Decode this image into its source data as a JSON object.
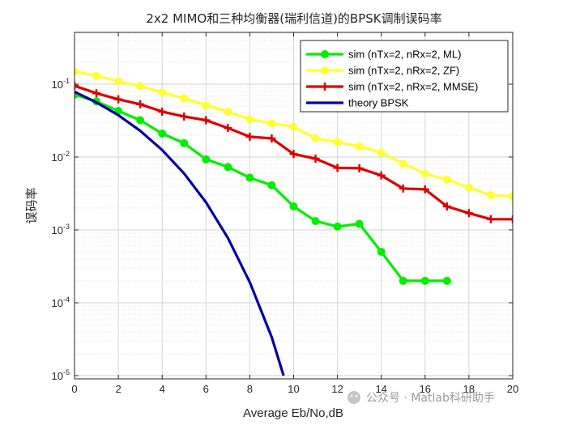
{
  "chart_data": {
    "type": "line",
    "title": "2x2 MIMO和三种均衡器(瑞利信道)的BPSK调制误码率",
    "xlabel": "Average Eb/No,dB",
    "ylabel": "误码率",
    "xlim": [
      0,
      20
    ],
    "ylim": [
      1e-05,
      0.5
    ],
    "yscale": "log",
    "grid": true,
    "legend_position": "top-right",
    "x_ticks": [
      "0",
      "2",
      "4",
      "6",
      "8",
      "10",
      "12",
      "14",
      "16",
      "18",
      "20"
    ],
    "y_ticks": [
      {
        "base": "10",
        "exp": "-1"
      },
      {
        "base": "10",
        "exp": "-2"
      },
      {
        "base": "10",
        "exp": "-3"
      },
      {
        "base": "10",
        "exp": "-4"
      },
      {
        "base": "10",
        "exp": "-5"
      }
    ],
    "series": [
      {
        "name": "sim (nTx=2, nRx=2, ML)",
        "color": "#00ee00",
        "marker": "circle",
        "x": [
          0,
          1,
          2,
          3,
          4,
          5,
          6,
          7,
          8,
          9,
          10,
          11,
          12,
          13,
          14,
          15,
          16,
          17
        ],
        "y": [
          0.072,
          0.058,
          0.043,
          0.032,
          0.021,
          0.0155,
          0.0093,
          0.0073,
          0.0052,
          0.0041,
          0.0021,
          0.00132,
          0.00111,
          0.00121,
          0.0005,
          0.0002,
          0.0002,
          0.0002
        ]
      },
      {
        "name": "sim (nTx=2, nRx=2, ZF)",
        "color": "#ffff33",
        "marker": "circle",
        "x": [
          0,
          1,
          2,
          3,
          4,
          5,
          6,
          7,
          8,
          9,
          10,
          11,
          12,
          13,
          14,
          15,
          16,
          17,
          18,
          19,
          20
        ],
        "y": [
          0.15,
          0.13,
          0.11,
          0.094,
          0.077,
          0.064,
          0.051,
          0.042,
          0.033,
          0.029,
          0.026,
          0.018,
          0.016,
          0.014,
          0.0115,
          0.0081,
          0.0059,
          0.0049,
          0.0038,
          0.003,
          0.0029
        ]
      },
      {
        "name": "sim (nTx=2, nRx=2, MMSE)",
        "color": "#dd0000",
        "marker": "plus",
        "x": [
          0,
          1,
          2,
          3,
          4,
          5,
          6,
          7,
          8,
          9,
          10,
          11,
          12,
          13,
          14,
          15,
          16,
          17,
          18,
          19,
          20
        ],
        "y": [
          0.095,
          0.075,
          0.062,
          0.053,
          0.042,
          0.036,
          0.032,
          0.025,
          0.019,
          0.018,
          0.011,
          0.0095,
          0.0071,
          0.007,
          0.0056,
          0.0037,
          0.0036,
          0.0021,
          0.0017,
          0.0014,
          0.0014
        ]
      },
      {
        "name": "theory BPSK",
        "color": "#0000aa",
        "marker": "none",
        "x": [
          0,
          1,
          2,
          3,
          4,
          5,
          6,
          7,
          8,
          9,
          9.54
        ],
        "y": [
          0.0786,
          0.0563,
          0.0375,
          0.0229,
          0.0125,
          0.00595,
          0.00239,
          0.000773,
          0.000191,
          3.36e-05,
          1e-05
        ]
      }
    ]
  },
  "watermark": "公众号 · Matlab科研助手"
}
